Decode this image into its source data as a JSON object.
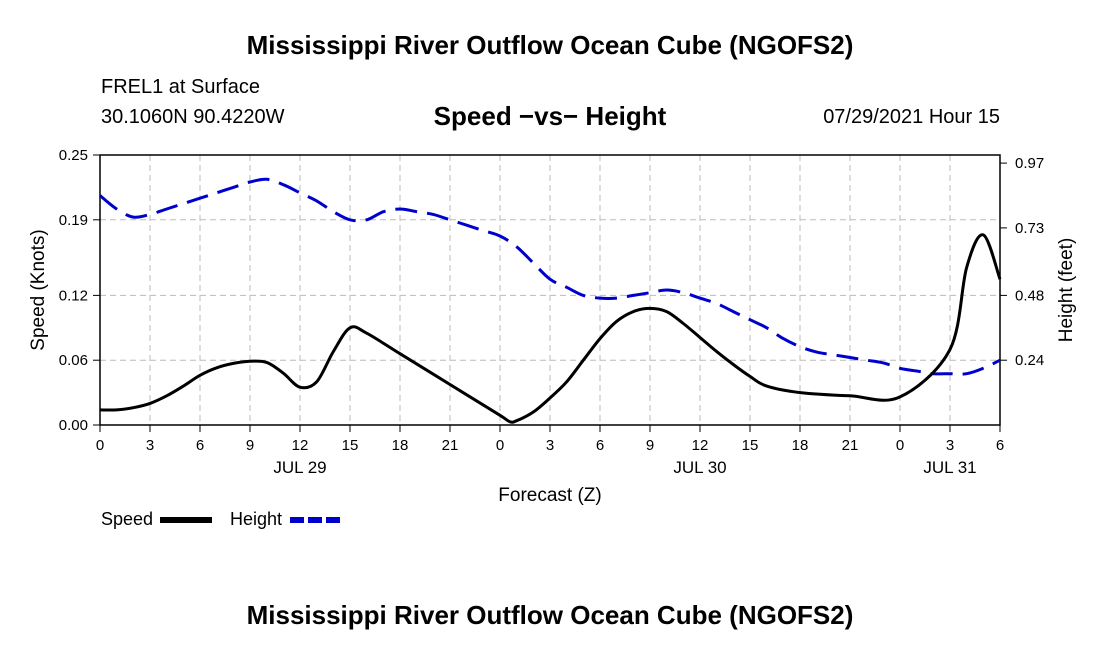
{
  "header": {
    "title": "Mississippi River Outflow Ocean Cube (NGOFS2)",
    "station": "FREL1 at Surface",
    "coords": "30.1060N  90.4220W",
    "chart_title": "Speed −vs− Height",
    "datetime": "07/29/2021 Hour 15"
  },
  "footer": {
    "title": "Mississippi River Outflow Ocean Cube (NGOFS2)"
  },
  "colors": {
    "speed": "#000000",
    "height": "#0000cc",
    "grid": "#bbbbbb"
  },
  "chart_data": {
    "type": "line",
    "title": "Speed −vs− Height",
    "xlabel": "Forecast (Z)",
    "ylabel": "Speed (Knots)",
    "y2label": "Height (feet)",
    "x_range": [
      0,
      54
    ],
    "ylim": [
      0,
      0.25
    ],
    "y2lim": [
      0,
      1.0
    ],
    "x_ticks": [
      0,
      3,
      6,
      9,
      12,
      15,
      18,
      21,
      24,
      27,
      30,
      33,
      36,
      39,
      42,
      45,
      48,
      51,
      54
    ],
    "x_tick_labels": [
      "0",
      "3",
      "6",
      "9",
      "12",
      "15",
      "18",
      "21",
      "0",
      "3",
      "6",
      "9",
      "12",
      "15",
      "18",
      "21",
      "0",
      "3",
      "6"
    ],
    "date_labels": [
      {
        "x": 12,
        "label": "JUL 29"
      },
      {
        "x": 36,
        "label": "JUL 30"
      },
      {
        "x": 51,
        "label": "JUL 31"
      }
    ],
    "y_ticks": [
      0.0,
      0.06,
      0.12,
      0.19,
      0.25
    ],
    "y_tick_labels": [
      "0.00",
      "0.06",
      "0.12",
      "0.19",
      "0.25"
    ],
    "y2_ticks": [
      0.24,
      0.48,
      0.73,
      0.97
    ],
    "y2_tick_labels": [
      "0.24",
      "0.48",
      "0.73",
      "0.97"
    ],
    "grid": true,
    "series": [
      {
        "name": "Speed",
        "axis": "left",
        "style": "solid",
        "x": [
          0,
          1,
          2,
          3,
          4,
          5,
          6,
          7,
          8,
          9,
          10,
          11,
          12,
          13,
          14,
          15,
          16,
          18,
          20,
          22,
          24,
          24.6,
          25,
          26,
          27,
          28,
          29,
          30,
          31,
          32,
          33,
          34,
          35,
          36,
          37,
          38,
          39,
          40,
          42,
          45,
          48,
          51,
          52,
          53,
          54
        ],
        "values": [
          0.014,
          0.014,
          0.016,
          0.02,
          0.027,
          0.036,
          0.046,
          0.053,
          0.057,
          0.059,
          0.058,
          0.048,
          0.035,
          0.04,
          0.068,
          0.09,
          0.085,
          0.066,
          0.047,
          0.028,
          0.009,
          0.003,
          0.004,
          0.012,
          0.025,
          0.04,
          0.06,
          0.08,
          0.096,
          0.105,
          0.108,
          0.105,
          0.094,
          0.081,
          0.068,
          0.056,
          0.045,
          0.036,
          0.03,
          0.027,
          0.026,
          0.07,
          0.146,
          0.176,
          0.135
        ]
      },
      {
        "name": "Height",
        "axis": "right",
        "style": "dashed",
        "x": [
          0,
          1,
          2,
          3,
          4,
          5,
          6,
          7,
          8,
          9,
          10,
          11,
          12,
          13,
          14,
          15,
          16,
          17,
          18,
          19,
          20,
          21,
          22,
          23,
          24,
          25,
          26,
          27,
          28,
          29,
          30,
          31,
          32,
          33,
          34,
          35,
          36,
          37,
          38,
          39,
          40,
          41,
          42,
          43,
          44,
          45,
          46,
          47,
          48,
          49,
          50,
          51,
          52,
          53,
          54
        ],
        "values": [
          0.85,
          0.8,
          0.77,
          0.78,
          0.8,
          0.82,
          0.84,
          0.86,
          0.88,
          0.9,
          0.91,
          0.89,
          0.86,
          0.83,
          0.79,
          0.76,
          0.76,
          0.79,
          0.8,
          0.79,
          0.78,
          0.76,
          0.74,
          0.72,
          0.7,
          0.66,
          0.6,
          0.54,
          0.51,
          0.48,
          0.47,
          0.47,
          0.48,
          0.49,
          0.5,
          0.49,
          0.47,
          0.45,
          0.42,
          0.39,
          0.36,
          0.32,
          0.29,
          0.27,
          0.26,
          0.25,
          0.24,
          0.23,
          0.21,
          0.2,
          0.19,
          0.19,
          0.19,
          0.21,
          0.24
        ]
      }
    ]
  }
}
